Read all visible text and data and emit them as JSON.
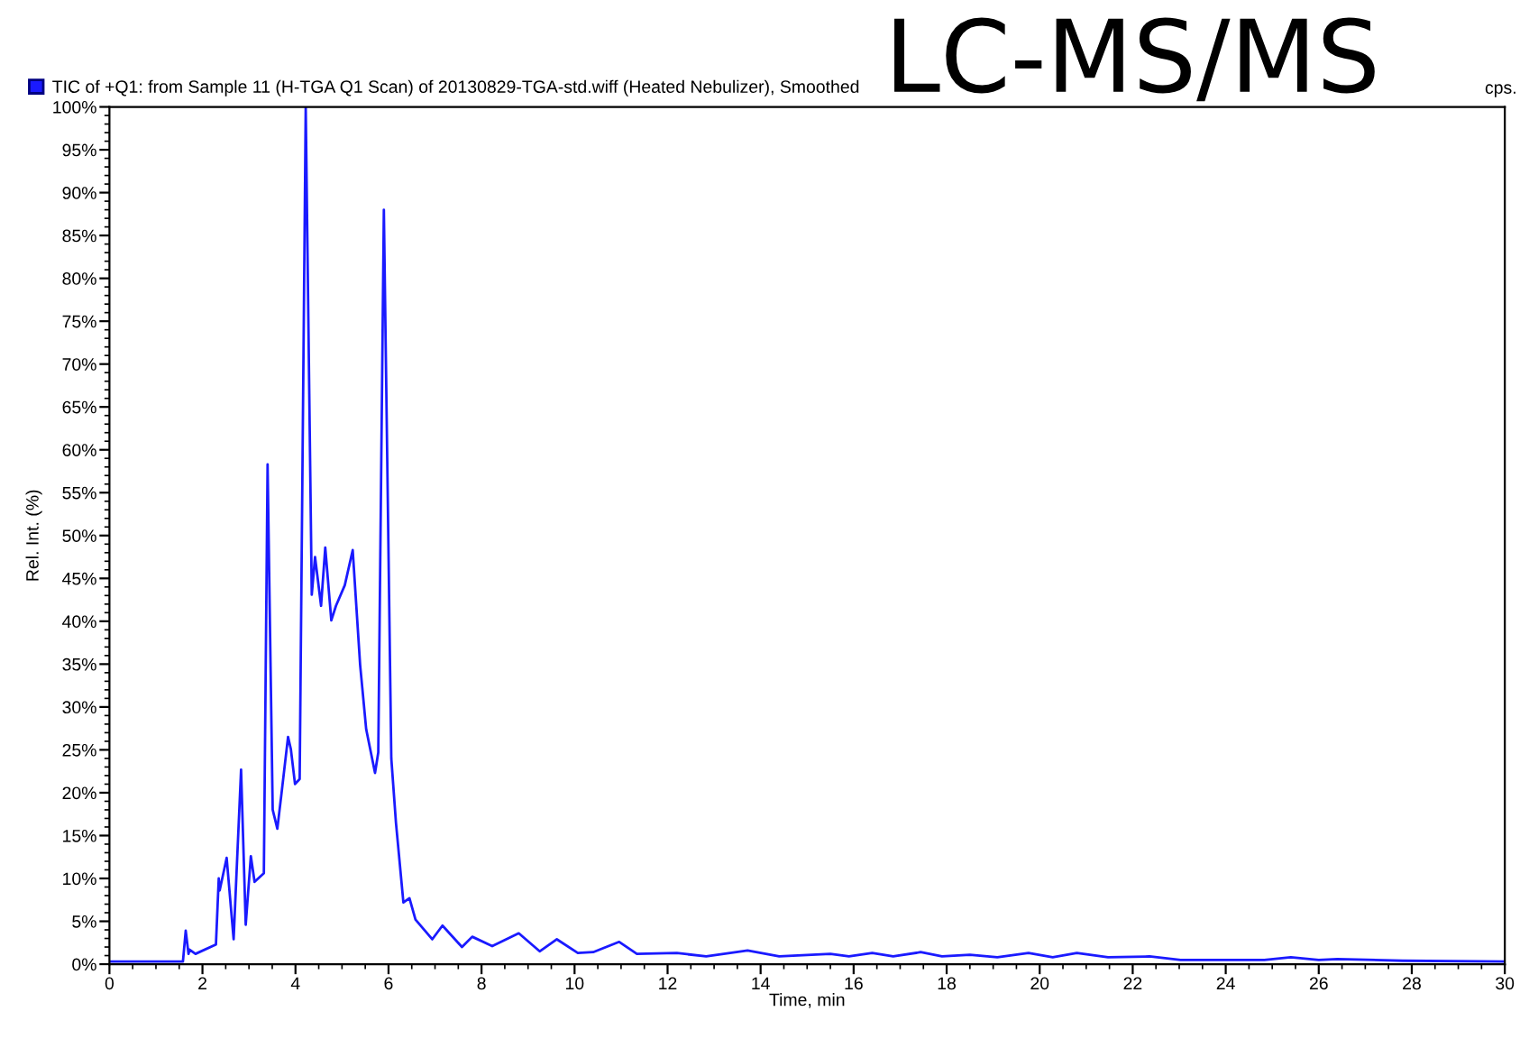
{
  "chart_data": {
    "type": "line",
    "xlabel": "Time, min",
    "ylabel": "Rel. Int. (%)",
    "annotations": [
      "LC-MS/MS",
      "cps."
    ],
    "xlim": [
      0,
      30
    ],
    "xticks": [
      0,
      2,
      4,
      6,
      8,
      10,
      12,
      14,
      16,
      18,
      20,
      22,
      24,
      26,
      28,
      30
    ],
    "ylim": [
      0,
      100
    ],
    "yticks": [
      {
        "value": 0,
        "label": "0%"
      },
      {
        "value": 5,
        "label": "5%"
      },
      {
        "value": 10,
        "label": "10%"
      },
      {
        "value": 15,
        "label": "15%"
      },
      {
        "value": 20,
        "label": "20%"
      },
      {
        "value": 25,
        "label": "25%"
      },
      {
        "value": 30,
        "label": "30%"
      },
      {
        "value": 35,
        "label": "35%"
      },
      {
        "value": 40,
        "label": "40%"
      },
      {
        "value": 45,
        "label": "45%"
      },
      {
        "value": 50,
        "label": "50%"
      },
      {
        "value": 55,
        "label": "55%"
      },
      {
        "value": 60,
        "label": "60%"
      },
      {
        "value": 65,
        "label": "65%"
      },
      {
        "value": 70,
        "label": "70%"
      },
      {
        "value": 75,
        "label": "75%"
      },
      {
        "value": 80,
        "label": "80%"
      },
      {
        "value": 85,
        "label": "85%"
      },
      {
        "value": 90,
        "label": "90%"
      },
      {
        "value": 95,
        "label": "95%"
      },
      {
        "value": 100,
        "label": "100%"
      }
    ],
    "grid": false,
    "legend": "top left",
    "marker": "none",
    "line_style": "solid",
    "series": [
      {
        "name": "TIC of +Q1: from Sample 11 (H-TGA Q1 Scan) of 20130829-TGA-std.wiff (Heated Nebulizer), Smoothed",
        "color": "#1a1aff",
        "x": [
          0,
          1.58,
          1.64,
          1.7,
          1.72,
          1.85,
          2.29,
          2.35,
          2.37,
          2.52,
          2.67,
          2.83,
          2.93,
          3.04,
          3.12,
          3.32,
          3.4,
          3.51,
          3.61,
          3.71,
          3.84,
          3.9,
          3.99,
          4.09,
          4.22,
          4.35,
          4.42,
          4.55,
          4.64,
          4.77,
          4.87,
          5.06,
          5.23,
          5.39,
          5.52,
          5.71,
          5.78,
          5.9,
          6.06,
          6.16,
          6.32,
          6.45,
          6.58,
          6.94,
          7.16,
          7.58,
          7.8,
          8.23,
          8.8,
          9.25,
          9.62,
          10.07,
          10.4,
          10.96,
          11.34,
          12.2,
          12.83,
          13.72,
          14.4,
          15.5,
          15.9,
          16.4,
          16.85,
          17.44,
          17.9,
          18.5,
          19.09,
          19.76,
          20.28,
          20.8,
          21.47,
          22.36,
          23.03,
          24.83,
          25.4,
          26.0,
          26.4,
          27.8,
          30
        ],
        "values": [
          0.3,
          0.3,
          3.9,
          1.2,
          1.7,
          1.2,
          2.3,
          10.0,
          8.6,
          12.4,
          2.9,
          22.7,
          4.6,
          12.6,
          9.6,
          10.6,
          58.3,
          18.0,
          15.8,
          20.4,
          26.5,
          25.1,
          21.0,
          21.6,
          100,
          43.1,
          47.5,
          41.8,
          48.6,
          40.1,
          41.8,
          44.2,
          48.3,
          34.9,
          27.4,
          22.3,
          24.7,
          88,
          24.0,
          16.5,
          7.2,
          7.7,
          5.2,
          2.9,
          4.5,
          2.0,
          3.2,
          2.1,
          3.6,
          1.5,
          2.9,
          1.3,
          1.4,
          2.6,
          1.2,
          1.3,
          0.9,
          1.6,
          0.9,
          1.2,
          0.9,
          1.3,
          0.9,
          1.4,
          0.9,
          1.1,
          0.8,
          1.3,
          0.8,
          1.3,
          0.8,
          0.9,
          0.5,
          0.5,
          0.8,
          0.5,
          0.6,
          0.4,
          0.3
        ]
      }
    ]
  }
}
